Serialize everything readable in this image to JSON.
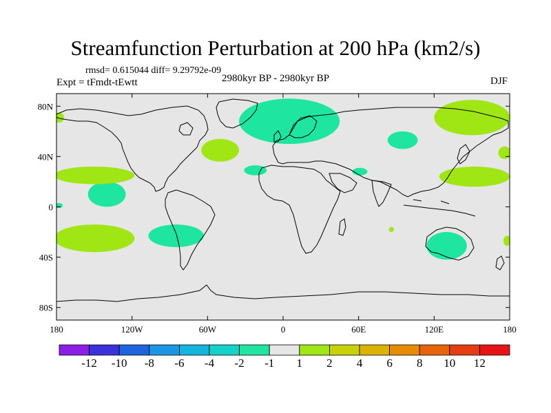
{
  "chart_data": {
    "type": "heatmap",
    "title": "Streamfunction Perturbation at 200 hPa (km2/s)",
    "stats_text": "rmsd= 0.615044 diff= 9.29792e-09",
    "left_label": "Expt = tFmdt-tEwtt",
    "center_label": "2980kyr BP - 2980kyr BP",
    "right_label": "DJF",
    "projection": "cylindrical equidistant",
    "lon_range": [
      -180,
      180
    ],
    "lat_range": [
      -90,
      90
    ],
    "x_ticks": [
      {
        "value": -180,
        "label": "180"
      },
      {
        "value": -120,
        "label": "120W"
      },
      {
        "value": -60,
        "label": "60W"
      },
      {
        "value": 0,
        "label": "0"
      },
      {
        "value": 60,
        "label": "60E"
      },
      {
        "value": 120,
        "label": "120E"
      },
      {
        "value": 180,
        "label": "180"
      }
    ],
    "y_ticks": [
      {
        "value": 80,
        "label": "80N"
      },
      {
        "value": 40,
        "label": "40N"
      },
      {
        "value": 0,
        "label": "0"
      },
      {
        "value": -40,
        "label": "40S"
      },
      {
        "value": -80,
        "label": "80S"
      }
    ],
    "colorbar": {
      "boundaries": [
        -12,
        -10,
        -8,
        -6,
        -4,
        -2,
        -1,
        1,
        2,
        4,
        6,
        8,
        10,
        12
      ],
      "labels": [
        "-12",
        "-10",
        "-8",
        "-6",
        "-4",
        "-2",
        "-1",
        "1",
        "2",
        "4",
        "6",
        "8",
        "10",
        "12"
      ],
      "colors": [
        "#8c1ee6",
        "#3c32dc",
        "#1e64dc",
        "#1e96e6",
        "#14b4dc",
        "#14d2c8",
        "#1ee6a0",
        "#e6e6e6",
        "#a0e614",
        "#c8d20a",
        "#dcb400",
        "#e68c00",
        "#e6640a",
        "#e63c14",
        "#e61414"
      ]
    },
    "contour_regions": [
      {
        "level": "-2 to -1",
        "color": "#1ee6a0",
        "center_lon": 5,
        "center_lat": 68,
        "extent_lon": 40,
        "extent_lat": 18,
        "region": "North Atlantic / Scandinavia"
      },
      {
        "level": "-2 to -1",
        "color": "#1ee6a0",
        "center_lon": 95,
        "center_lat": 53,
        "extent_lon": 12,
        "extent_lat": 7,
        "region": "Central Asia"
      },
      {
        "level": "-2 to -1",
        "color": "#1ee6a0",
        "center_lon": -22,
        "center_lat": 29,
        "extent_lon": 9,
        "extent_lat": 4,
        "region": "Subtropical North Atlantic"
      },
      {
        "level": "-2 to -1",
        "color": "#1ee6a0",
        "center_lon": 61,
        "center_lat": 28,
        "extent_lon": 6,
        "extent_lat": 3,
        "region": "Arabian Sea"
      },
      {
        "level": "-2 to -1",
        "color": "#1ee6a0",
        "center_lon": -140,
        "center_lat": 10,
        "extent_lon": 15,
        "extent_lat": 10,
        "region": "Tropical North Pacific"
      },
      {
        "level": "-2 to -1",
        "color": "#1ee6a0",
        "center_lon": -85,
        "center_lat": -23,
        "extent_lon": 22,
        "extent_lat": 9,
        "region": "Southeast Pacific"
      },
      {
        "level": "-2 to -1",
        "color": "#1ee6a0",
        "center_lon": 130,
        "center_lat": -31,
        "extent_lon": 16,
        "extent_lat": 11,
        "region": "Australia"
      },
      {
        "level": "-2 to -1",
        "color": "#1ee6a0",
        "center_lon": -178,
        "center_lat": 1,
        "extent_lon": 3,
        "extent_lat": 2,
        "region": "Dateline equator"
      },
      {
        "level": "1 to 2",
        "color": "#a0e614",
        "center_lon": -50,
        "center_lat": 45,
        "extent_lon": 15,
        "extent_lat": 9,
        "region": "Northwest Atlantic"
      },
      {
        "level": "1 to 2",
        "color": "#a0e614",
        "center_lon": 150,
        "center_lat": 71,
        "extent_lon": 30,
        "extent_lat": 14,
        "region": "East Siberia / Arctic"
      },
      {
        "level": "1 to 2",
        "color": "#a0e614",
        "center_lon": 152,
        "center_lat": 24,
        "extent_lon": 28,
        "extent_lat": 8,
        "region": "West Pacific"
      },
      {
        "level": "1 to 2",
        "color": "#a0e614",
        "center_lon": -150,
        "center_lat": 25,
        "extent_lon": 32,
        "extent_lat": 7,
        "region": "Northeast Pacific"
      },
      {
        "level": "1 to 2",
        "color": "#a0e614",
        "center_lon": -150,
        "center_lat": -25,
        "extent_lon": 32,
        "extent_lat": 11,
        "region": "South Pacific"
      },
      {
        "level": "1 to 2",
        "color": "#a0e614",
        "center_lon": 176,
        "center_lat": 43,
        "extent_lon": 5,
        "extent_lat": 5,
        "region": "North Pacific dateline"
      },
      {
        "level": "1 to 2",
        "color": "#a0e614",
        "center_lon": -178,
        "center_lat": 71,
        "extent_lon": 4,
        "extent_lat": 4,
        "region": "Bering Strait"
      },
      {
        "level": "1 to 2",
        "color": "#a0e614",
        "center_lon": 86,
        "center_lat": -18,
        "extent_lon": 2,
        "extent_lat": 2,
        "region": "Indian Ocean"
      },
      {
        "level": "1 to 2",
        "color": "#a0e614",
        "center_lon": 178,
        "center_lat": -27,
        "extent_lon": 3,
        "extent_lat": 4,
        "region": "Southwest Pacific dateline"
      }
    ]
  }
}
